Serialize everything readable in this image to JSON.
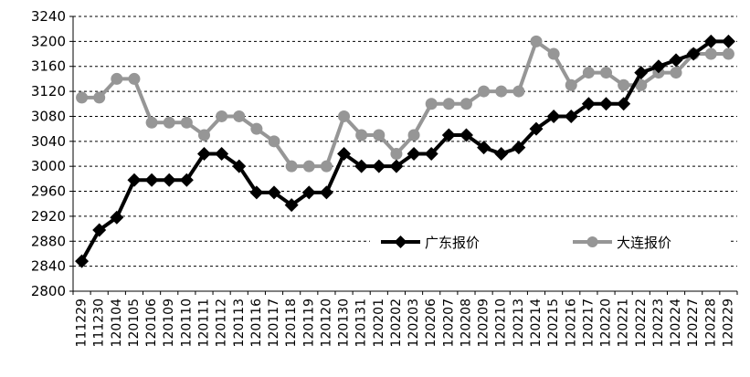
{
  "chart_data": {
    "type": "line",
    "title": "",
    "xlabel": "",
    "ylabel": "",
    "ylim": [
      2800,
      3240
    ],
    "y_ticks": [
      2800,
      2840,
      2880,
      2920,
      2960,
      3000,
      3040,
      3080,
      3120,
      3160,
      3200,
      3240
    ],
    "grid": "horizontal dashed",
    "legend_position": "inside-right",
    "categories": [
      "111229",
      "111230",
      "120104",
      "120105",
      "120106",
      "120109",
      "120110",
      "120111",
      "120112",
      "120113",
      "120116",
      "120117",
      "120118",
      "120119",
      "120120",
      "120130",
      "120131",
      "120201",
      "120202",
      "120203",
      "120206",
      "120207",
      "120208",
      "120209",
      "120210",
      "120213",
      "120214",
      "120215",
      "120216",
      "120217",
      "120220",
      "120221",
      "120222",
      "120223",
      "120224",
      "120227",
      "120228",
      "120229"
    ],
    "series": [
      {
        "name": "广东报价",
        "color": "#000000",
        "marker": "diamond",
        "values": [
          2848,
          2898,
          2918,
          2978,
          2978,
          2978,
          2978,
          3020,
          3020,
          3000,
          2958,
          2958,
          2938,
          2958,
          2958,
          3020,
          3000,
          3000,
          3000,
          3020,
          3020,
          3050,
          3050,
          3030,
          3020,
          3030,
          3060,
          3080,
          3080,
          3100,
          3100,
          3100,
          3150,
          3160,
          3170,
          3180,
          3200,
          3200
        ]
      },
      {
        "name": "大连报价",
        "color": "#969696",
        "marker": "circle",
        "values": [
          3110,
          3110,
          3140,
          3140,
          3070,
          3070,
          3070,
          3050,
          3080,
          3080,
          3060,
          3040,
          3000,
          3000,
          3000,
          3080,
          3050,
          3050,
          3020,
          3050,
          3100,
          3100,
          3100,
          3120,
          3120,
          3120,
          3200,
          3180,
          3130,
          3150,
          3150,
          3130,
          3130,
          3150,
          3150,
          3180,
          3180,
          3180
        ]
      }
    ]
  }
}
